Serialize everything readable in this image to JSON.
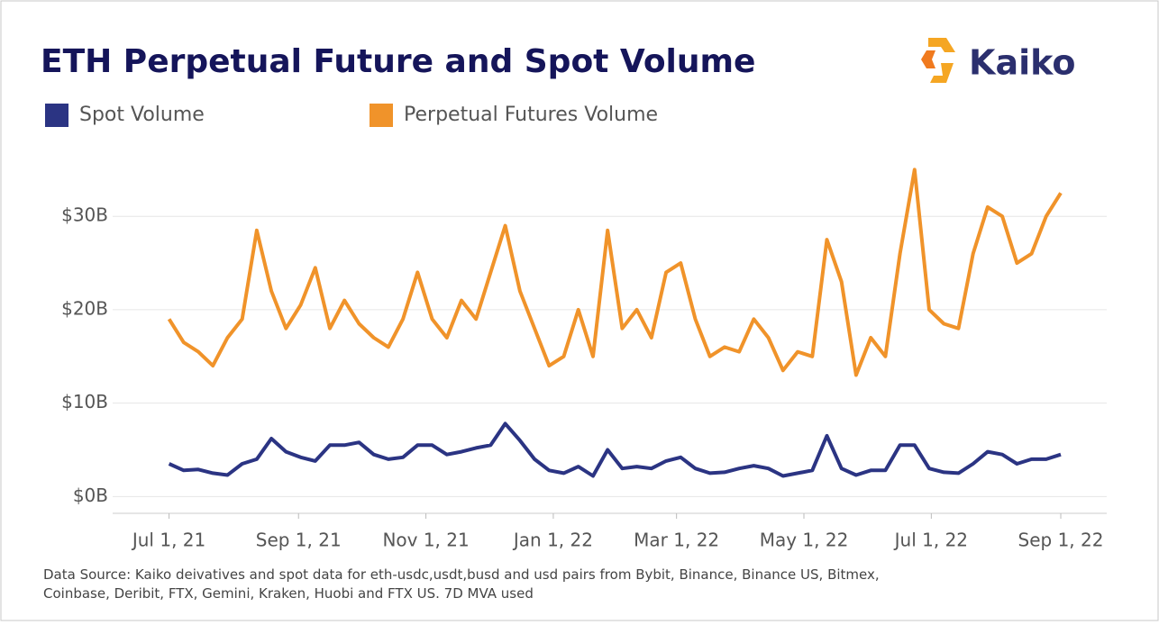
{
  "chart_data": {
    "type": "line",
    "title": "ETH Perpetual Future and Spot Volume",
    "brand": "Kaiko",
    "note": "Data Source: Kaiko deivatives and spot data for eth-usdc,usdt,busd and usd pairs from Bybit, Binance, Binance US, Bitmex, Coinbase, Deribit, FTX, Gemini, Kraken, Huobi and FTX US. 7D MVA used",
    "x": [
      "2021-07-01",
      "2021-07-08",
      "2021-07-15",
      "2021-07-22",
      "2021-07-29",
      "2021-08-05",
      "2021-08-12",
      "2021-08-19",
      "2021-08-26",
      "2021-09-02",
      "2021-09-09",
      "2021-09-16",
      "2021-09-23",
      "2021-09-30",
      "2021-10-07",
      "2021-10-14",
      "2021-10-21",
      "2021-10-28",
      "2021-11-04",
      "2021-11-11",
      "2021-11-18",
      "2021-11-25",
      "2021-12-02",
      "2021-12-09",
      "2021-12-16",
      "2021-12-23",
      "2021-12-30",
      "2022-01-06",
      "2022-01-13",
      "2022-01-20",
      "2022-01-27",
      "2022-02-03",
      "2022-02-10",
      "2022-02-17",
      "2022-02-24",
      "2022-03-03",
      "2022-03-10",
      "2022-03-17",
      "2022-03-24",
      "2022-03-31",
      "2022-04-07",
      "2022-04-14",
      "2022-04-21",
      "2022-04-28",
      "2022-05-05",
      "2022-05-12",
      "2022-05-19",
      "2022-05-26",
      "2022-06-02",
      "2022-06-09",
      "2022-06-16",
      "2022-06-23",
      "2022-06-30",
      "2022-07-07",
      "2022-07-14",
      "2022-07-21",
      "2022-07-28",
      "2022-08-04",
      "2022-08-11",
      "2022-08-18",
      "2022-08-25",
      "2022-09-01"
    ],
    "series": [
      {
        "name": "Spot Volume",
        "color": "#2b3483",
        "values": [
          3.5,
          2.8,
          2.9,
          2.5,
          2.3,
          3.5,
          4,
          6.2,
          4.8,
          4.2,
          3.8,
          5.5,
          5.5,
          5.8,
          4.5,
          4,
          4.2,
          5.5,
          5.5,
          4.5,
          4.8,
          5.2,
          5.5,
          7.8,
          6,
          4,
          2.8,
          2.5,
          3.2,
          2.2,
          5,
          3,
          3.2,
          3,
          3.8,
          4.2,
          3,
          2.5,
          2.6,
          3,
          3.3,
          3,
          2.2,
          2.5,
          2.8,
          6.5,
          3,
          2.3,
          2.8,
          2.8,
          5.5,
          5.5,
          3,
          2.6,
          2.5,
          3.5,
          4.8,
          4.5,
          3.5,
          4,
          4,
          4.5
        ]
      },
      {
        "name": "Perpetual Futures Volume",
        "color": "#f0932a",
        "values": [
          19,
          16.5,
          15.5,
          14,
          17,
          19,
          28.5,
          22,
          18,
          20.5,
          24.5,
          18,
          21,
          18.5,
          17,
          16,
          19,
          24,
          19,
          17,
          21,
          19,
          24,
          29,
          22,
          18,
          14,
          15,
          20,
          15,
          28.5,
          18,
          20,
          17,
          24,
          25,
          19,
          15,
          16,
          15.5,
          19,
          17,
          13.5,
          15.5,
          15,
          27.5,
          23,
          13,
          17,
          15,
          26,
          35,
          20,
          18.5,
          18,
          26,
          31,
          30,
          25,
          26,
          30,
          32.5
        ]
      }
    ],
    "xlim": [
      "2021-06-04",
      "2022-09-23"
    ],
    "xticks": [
      {
        "value": "2021-07-01",
        "label": "Jul 1, 21"
      },
      {
        "value": "2021-09-01",
        "label": "Sep 1, 21"
      },
      {
        "value": "2021-11-01",
        "label": "Nov 1, 21"
      },
      {
        "value": "2022-01-01",
        "label": "Jan 1, 22"
      },
      {
        "value": "2022-03-01",
        "label": "Mar 1, 22"
      },
      {
        "value": "2022-05-01",
        "label": "May 1, 22"
      },
      {
        "value": "2022-07-01",
        "label": "Jul 1, 22"
      },
      {
        "value": "2022-09-01",
        "label": "Sep 1, 22"
      }
    ],
    "ylim": [
      -1.8,
      38.7
    ],
    "yticks": [
      {
        "value": 0,
        "label": "$0B"
      },
      {
        "value": 10,
        "label": "$10B"
      },
      {
        "value": 20,
        "label": "$20B"
      },
      {
        "value": 30,
        "label": "$30B"
      }
    ],
    "grid": true
  }
}
